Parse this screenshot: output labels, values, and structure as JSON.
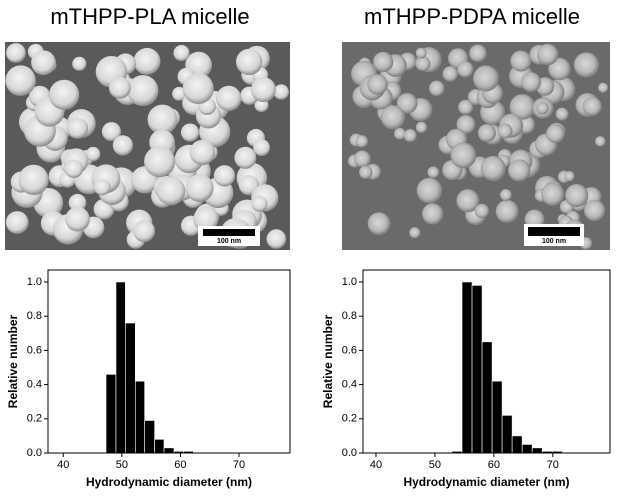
{
  "panels": [
    {
      "title": "mTHPP-PLA micelle",
      "scale_bar": "100 nm"
    },
    {
      "title": "mTHPP-PDPA micelle",
      "scale_bar": "100 nm"
    }
  ],
  "chart_data": [
    {
      "type": "histogram",
      "bins": [
        47.3,
        49,
        50.6,
        52.3,
        53.9,
        55.6,
        57.2,
        58.9,
        60.5,
        62.2
      ],
      "values": [
        0.46,
        1.0,
        0.76,
        0.42,
        0.19,
        0.08,
        0.03,
        0.01,
        0.01
      ],
      "color": "#000000",
      "xlabel": "Hydrodynamic diameter (nm)",
      "ylabel": "Relative number",
      "xlim": [
        37.4,
        78.7
      ],
      "xticks": [
        40,
        50,
        60,
        70
      ],
      "ylim": [
        0,
        1.07
      ],
      "yticks": [
        {
          "value": 0,
          "label": "0.0"
        },
        0.2,
        0.4,
        0.6,
        0.8,
        {
          "value": 1,
          "label": "1.0"
        }
      ]
    },
    {
      "type": "histogram",
      "bins": [
        52.9,
        54.6,
        56.3,
        58,
        59.7,
        61.4,
        63.1,
        64.8,
        66.5,
        68.2,
        69.9,
        71.6
      ],
      "values": [
        0.01,
        1.0,
        0.98,
        0.65,
        0.42,
        0.22,
        0.1,
        0.05,
        0.03,
        0.01,
        0.01
      ],
      "color": "#000000",
      "xlabel": "Hydrodynamic diameter (nm)",
      "ylabel": "Relative number",
      "xlim": [
        37.8,
        79.7
      ],
      "xticks": [
        40,
        50,
        60,
        70
      ],
      "ylim": [
        0,
        1.07
      ],
      "yticks": [
        {
          "value": 0,
          "label": "0.0"
        },
        0.2,
        0.4,
        0.6,
        0.8,
        {
          "value": 1,
          "label": "1.0"
        }
      ]
    }
  ]
}
